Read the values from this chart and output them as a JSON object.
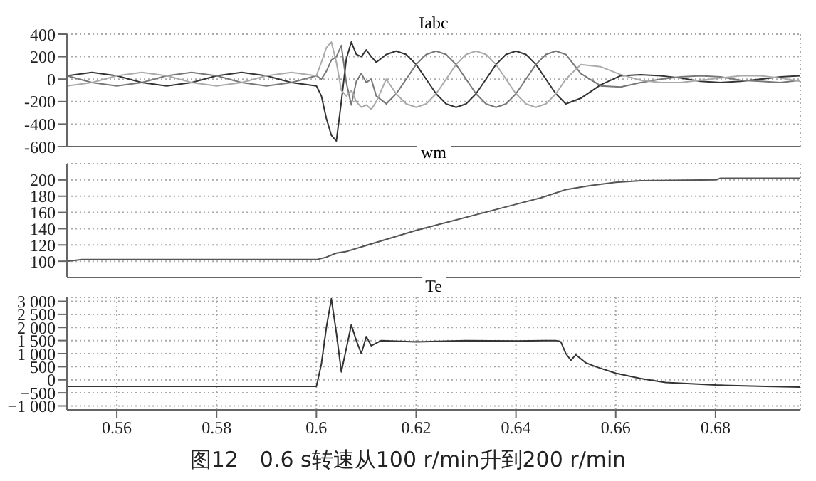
{
  "chart_data": [
    {
      "type": "line",
      "title": "Iabc",
      "x": [
        0.55,
        0.555,
        0.56,
        0.565,
        0.57,
        0.575,
        0.58,
        0.585,
        0.59,
        0.595,
        0.6,
        0.601,
        0.602,
        0.603,
        0.604,
        0.605,
        0.606,
        0.607,
        0.608,
        0.609,
        0.61,
        0.611,
        0.612,
        0.614,
        0.616,
        0.618,
        0.62,
        0.622,
        0.624,
        0.626,
        0.628,
        0.63,
        0.632,
        0.634,
        0.636,
        0.638,
        0.64,
        0.642,
        0.644,
        0.646,
        0.648,
        0.65,
        0.653,
        0.657,
        0.661,
        0.665,
        0.669,
        0.673,
        0.677,
        0.681,
        0.685,
        0.689,
        0.693,
        0.697
      ],
      "series": [
        {
          "color": "#333333",
          "values": [
            30,
            60,
            30,
            -30,
            -60,
            -30,
            30,
            60,
            30,
            -30,
            -60,
            -150,
            -350,
            -500,
            -550,
            -200,
            180,
            330,
            220,
            200,
            260,
            200,
            150,
            220,
            250,
            220,
            130,
            0,
            -130,
            -220,
            -250,
            -220,
            -130,
            0,
            130,
            220,
            250,
            220,
            130,
            0,
            -130,
            -220,
            -170,
            -50,
            30,
            40,
            30,
            10,
            -20,
            -30,
            -20,
            0,
            20,
            30
          ]
        },
        {
          "color": "#777777",
          "values": [
            30,
            -30,
            -60,
            -30,
            30,
            60,
            30,
            -30,
            -60,
            -30,
            30,
            0,
            70,
            170,
            200,
            300,
            -30,
            -230,
            -20,
            50,
            -30,
            0,
            -150,
            -220,
            -130,
            0,
            130,
            220,
            250,
            220,
            130,
            0,
            -130,
            -220,
            -250,
            -220,
            -130,
            0,
            130,
            220,
            250,
            220,
            50,
            -60,
            -70,
            -30,
            0,
            20,
            30,
            20,
            -10,
            -20,
            -30,
            -10
          ]
        },
        {
          "color": "#aaaaaa",
          "values": [
            -60,
            -30,
            30,
            60,
            30,
            -30,
            -60,
            -30,
            30,
            60,
            30,
            150,
            280,
            330,
            150,
            -100,
            -150,
            -100,
            -200,
            -250,
            -230,
            -270,
            -200,
            0,
            -130,
            -220,
            -250,
            -220,
            -130,
            0,
            130,
            220,
            250,
            220,
            130,
            0,
            -130,
            -220,
            -250,
            -220,
            -130,
            0,
            130,
            110,
            40,
            -10,
            -30,
            -30,
            -10,
            10,
            30,
            30,
            10,
            -20
          ]
        }
      ],
      "xlim": [
        0.55,
        0.697
      ],
      "xticks": [
        0.56,
        0.58,
        0.6,
        0.62,
        0.64,
        0.66,
        0.68
      ],
      "ylim": [
        -600,
        400
      ],
      "yticks": [
        -600,
        -400,
        -200,
        0,
        200,
        400
      ],
      "grid": true,
      "tick_labels": "y",
      "marker": "none"
    },
    {
      "type": "line",
      "title": "wm",
      "x": [
        0.55,
        0.553,
        0.6,
        0.602,
        0.604,
        0.606,
        0.62,
        0.64,
        0.645,
        0.65,
        0.655,
        0.66,
        0.665,
        0.68,
        0.681,
        0.697
      ],
      "series": [
        {
          "color": "#555555",
          "values": [
            100,
            102,
            102,
            105,
            110,
            112,
            138,
            170,
            178,
            188,
            193,
            197,
            199,
            200,
            202,
            202
          ]
        }
      ],
      "xlim": [
        0.55,
        0.697
      ],
      "xticks": [
        0.56,
        0.58,
        0.6,
        0.62,
        0.64,
        0.66,
        0.68
      ],
      "ylim": [
        80,
        220
      ],
      "yticks": [
        100,
        120,
        140,
        160,
        180,
        200
      ],
      "grid": true,
      "tick_labels": "y",
      "marker": "none"
    },
    {
      "type": "line",
      "title": "Te",
      "x": [
        0.55,
        0.6,
        0.601,
        0.602,
        0.603,
        0.604,
        0.605,
        0.606,
        0.607,
        0.608,
        0.609,
        0.61,
        0.611,
        0.613,
        0.62,
        0.63,
        0.64,
        0.648,
        0.649,
        0.65,
        0.651,
        0.652,
        0.654,
        0.656,
        0.66,
        0.665,
        0.67,
        0.68,
        0.69,
        0.697
      ],
      "series": [
        {
          "color": "#333333",
          "values": [
            -250,
            -250,
            600,
            2000,
            3100,
            1800,
            300,
            1200,
            2100,
            1500,
            1000,
            1650,
            1300,
            1500,
            1450,
            1500,
            1480,
            1500,
            1450,
            1000,
            750,
            950,
            650,
            500,
            250,
            50,
            -100,
            -200,
            -250,
            -280
          ]
        }
      ],
      "xlim": [
        0.55,
        0.697
      ],
      "xticks": [
        0.56,
        0.58,
        0.6,
        0.62,
        0.64,
        0.66,
        0.68
      ],
      "ylim": [
        -1150,
        3150
      ],
      "yticks": [
        {
          "value": -1000,
          "label": "−1 000"
        },
        {
          "value": -500,
          "label": "−500"
        },
        0,
        500,
        {
          "value": 1000,
          "label": "1 000"
        },
        {
          "value": 1500,
          "label": "1 500"
        },
        {
          "value": 2000,
          "label": "2 000"
        },
        {
          "value": 2500,
          "label": "2 500"
        },
        {
          "value": 3000,
          "label": "3 000"
        }
      ],
      "grid": true,
      "marker": "none",
      "annotations": [
        "图12　0.6 s转速从100 r/min升到200 r/min"
      ]
    }
  ]
}
